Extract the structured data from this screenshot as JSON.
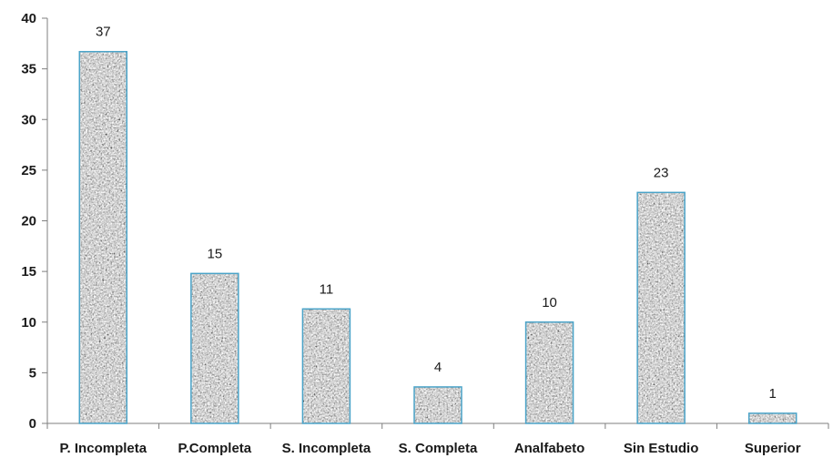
{
  "chart_data": {
    "type": "bar",
    "categories": [
      "P. Incompleta",
      "P.Completa",
      "S. Incompleta",
      "S. Completa",
      "Analfabeto",
      "Sin Estudio",
      "Superior"
    ],
    "values": [
      36.7,
      14.8,
      11.3,
      3.6,
      10.0,
      22.8,
      1.0
    ],
    "data_labels": [
      "37",
      "15",
      "11",
      "4",
      "10",
      "23",
      "1"
    ],
    "title": "",
    "xlabel": "",
    "ylabel": "",
    "ylim": [
      0,
      40
    ],
    "yticks": [
      0,
      5,
      10,
      15,
      20,
      25,
      30,
      35,
      40
    ],
    "ytick_labels": [
      "0",
      "5",
      "10",
      "15",
      "20",
      "25",
      "30",
      "35",
      "40"
    ],
    "grid": false,
    "legend": "none",
    "bar_fill": "granite texture (gray)",
    "bar_stroke": "#4aa3c8",
    "axis_color": "#7f7f7f"
  }
}
